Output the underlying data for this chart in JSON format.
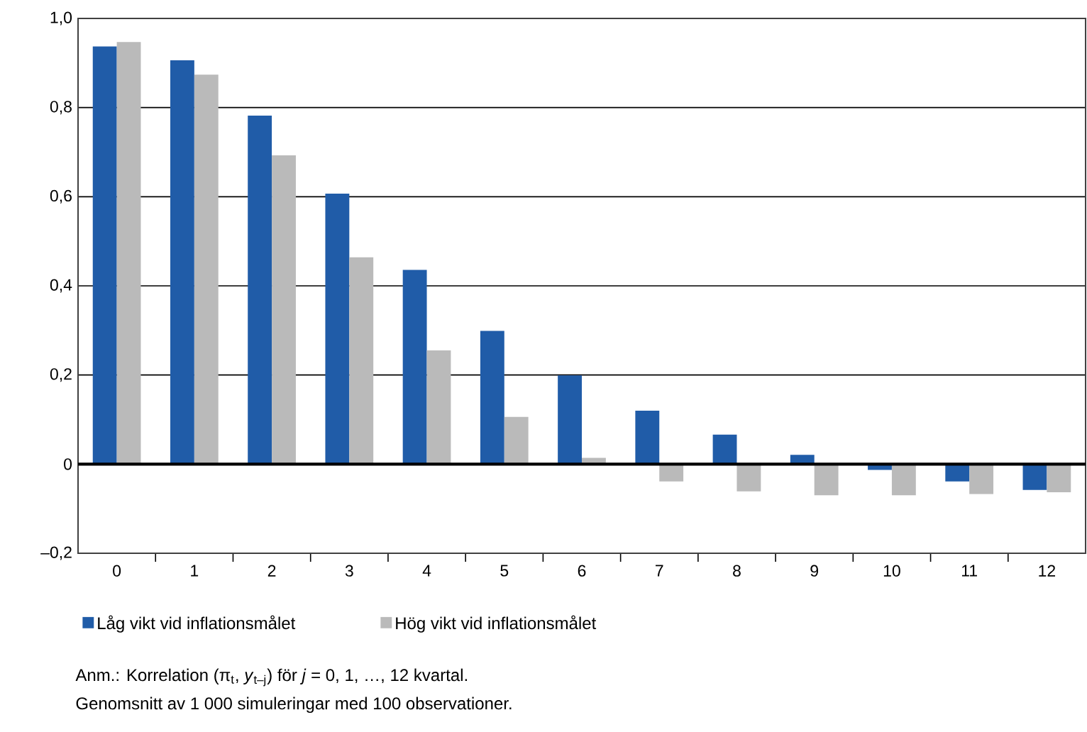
{
  "chart_data": {
    "type": "bar",
    "categories": [
      "0",
      "1",
      "2",
      "3",
      "4",
      "5",
      "6",
      "7",
      "8",
      "9",
      "10",
      "11",
      "12"
    ],
    "series": [
      {
        "name": "Låg vikt vid inflationsmålet",
        "color": "#205ca8",
        "values": [
          0.937,
          0.906,
          0.782,
          0.607,
          0.436,
          0.299,
          0.199,
          0.12,
          0.066,
          0.021,
          -0.013,
          -0.039,
          -0.058
        ]
      },
      {
        "name": "Hög vikt vid inflationsmålet",
        "color": "#bababa",
        "values": [
          0.947,
          0.874,
          0.693,
          0.464,
          0.255,
          0.106,
          0.014,
          -0.039,
          -0.061,
          -0.07,
          -0.07,
          -0.067,
          -0.063
        ]
      }
    ],
    "ylim": [
      -0.2,
      1.0
    ],
    "yticks": [
      {
        "value": -0.2,
        "label": "–0,2"
      },
      {
        "value": 0,
        "label": "0"
      },
      {
        "value": 0.2,
        "label": "0,2"
      },
      {
        "value": 0.4,
        "label": "0,4"
      },
      {
        "value": 0.6,
        "label": "0,6"
      },
      {
        "value": 0.8,
        "label": "0,8"
      },
      {
        "value": 1.0,
        "label": "1,0"
      }
    ],
    "grid": "y",
    "legend": "bottom",
    "ref_lines": [
      {
        "axis": "y",
        "value": 0,
        "color": "#000000"
      }
    ],
    "annotations": [
      "Anm.: Korrelation (π$_{t}$, *y*$_{t–j}$) för *j* = 0, 1, …, 12 kvartal.",
      "Genomsnitt av 1 000 simuleringar med 100 observationer."
    ]
  }
}
